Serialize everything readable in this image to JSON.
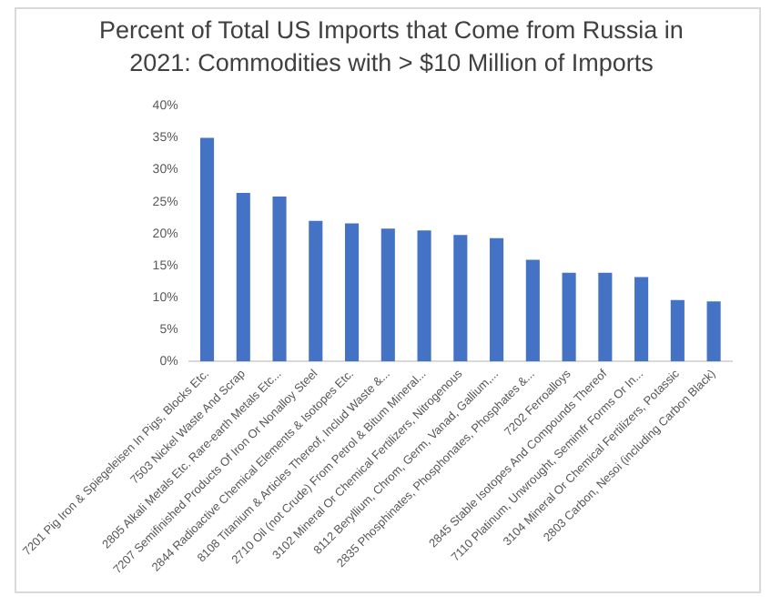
{
  "chart_data": {
    "type": "bar",
    "title": "Percent of Total US Imports that Come from Russia in 2021: Commodities with > $10 Million of Imports",
    "categories": [
      "7201 Pig Iron & Spiegeleisen In Pigs, Blocks Etc.",
      "7503 Nickel Waste And Scrap",
      "2805 Alkali Metals Etc. Rare-earth Metals Etc...",
      "7207 Semifinished Products Of Iron Or Nonalloy Steel",
      "2844 Radioactive Chemical Elements & Isotopes Etc.",
      "8108 Titanium & Articles Thereof, Includ Waste &...",
      "2710 Oil (not Crude) From Petrol & Bitum Mineral...",
      "3102 Mineral Or Chemical Fertilizers, Nitrogenous",
      "8112 Beryllium, Chrom, Germ, Vanad, Gallium,...",
      "2835 Phosphinates, Phosphonates, Phosphates &...",
      "7202 Ferroalloys",
      "2845 Stable Isotopes And Compounds Thereof",
      "7110 Platinum, Unwrought, Semimfr Forms Or In...",
      "3104 Mineral Or Chemical Fertilizers, Potassic",
      "2803 Carbon, Nesoi (including Carbon Black)"
    ],
    "values": [
      35.0,
      26.4,
      25.8,
      22.0,
      21.6,
      20.8,
      20.5,
      19.8,
      19.3,
      15.9,
      13.9,
      13.9,
      13.2,
      9.6,
      9.4
    ],
    "color": "#4472c4",
    "ylim": [
      0,
      40
    ],
    "yticks": [
      {
        "value": 0,
        "label": "0%"
      },
      {
        "value": 5,
        "label": "5%"
      },
      {
        "value": 10,
        "label": "10%"
      },
      {
        "value": 15,
        "label": "15%"
      },
      {
        "value": 20,
        "label": "20%"
      },
      {
        "value": 25,
        "label": "25%"
      },
      {
        "value": 30,
        "label": "30%"
      },
      {
        "value": 35,
        "label": "35%"
      },
      {
        "value": 40,
        "label": "40%"
      }
    ],
    "grid": false,
    "legend": false
  }
}
